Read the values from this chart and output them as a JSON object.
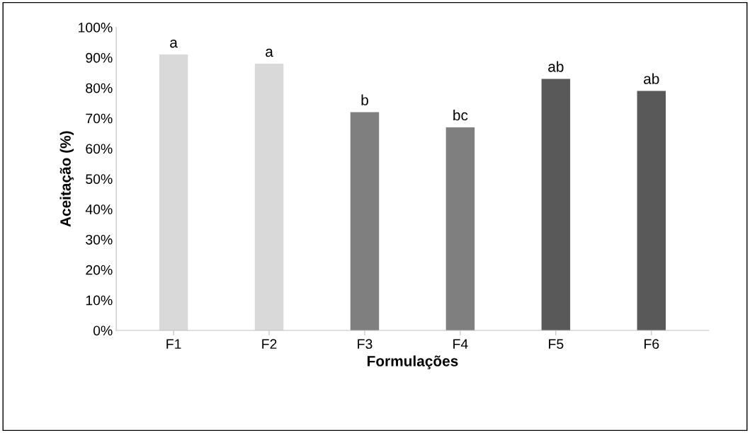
{
  "chart_data": {
    "type": "bar",
    "xlabel": "Formulações",
    "ylabel": "Aceitação (%)",
    "categories": [
      "F1",
      "F2",
      "F3",
      "F4",
      "F5",
      "F6"
    ],
    "values": [
      91,
      88,
      72,
      67,
      83,
      79
    ],
    "colors": [
      "#d9d9d9",
      "#d9d9d9",
      "#7f7f7f",
      "#7f7f7f",
      "#595959",
      "#595959"
    ],
    "ylim": [
      0,
      100
    ],
    "yticks": [
      {
        "value": 0,
        "label": "0%"
      },
      {
        "value": 10,
        "label": "10%"
      },
      {
        "value": 20,
        "label": "20%"
      },
      {
        "value": 30,
        "label": "30%"
      },
      {
        "value": 40,
        "label": "40%"
      },
      {
        "value": 50,
        "label": "50%"
      },
      {
        "value": 60,
        "label": "60%"
      },
      {
        "value": 70,
        "label": "70%"
      },
      {
        "value": 80,
        "label": "80%"
      },
      {
        "value": 90,
        "label": "90%"
      },
      {
        "value": 100,
        "label": "100%"
      }
    ],
    "grid": false,
    "legend": false,
    "annotations": [
      {
        "text": "a",
        "x": "F1",
        "y": 91
      },
      {
        "text": "a",
        "x": "F2",
        "y": 88
      },
      {
        "text": "b",
        "x": "F3",
        "y": 72
      },
      {
        "text": "bc",
        "x": "F4",
        "y": 67
      },
      {
        "text": "ab",
        "x": "F5",
        "y": 83
      },
      {
        "text": "ab",
        "x": "F6",
        "y": 79
      }
    ]
  }
}
